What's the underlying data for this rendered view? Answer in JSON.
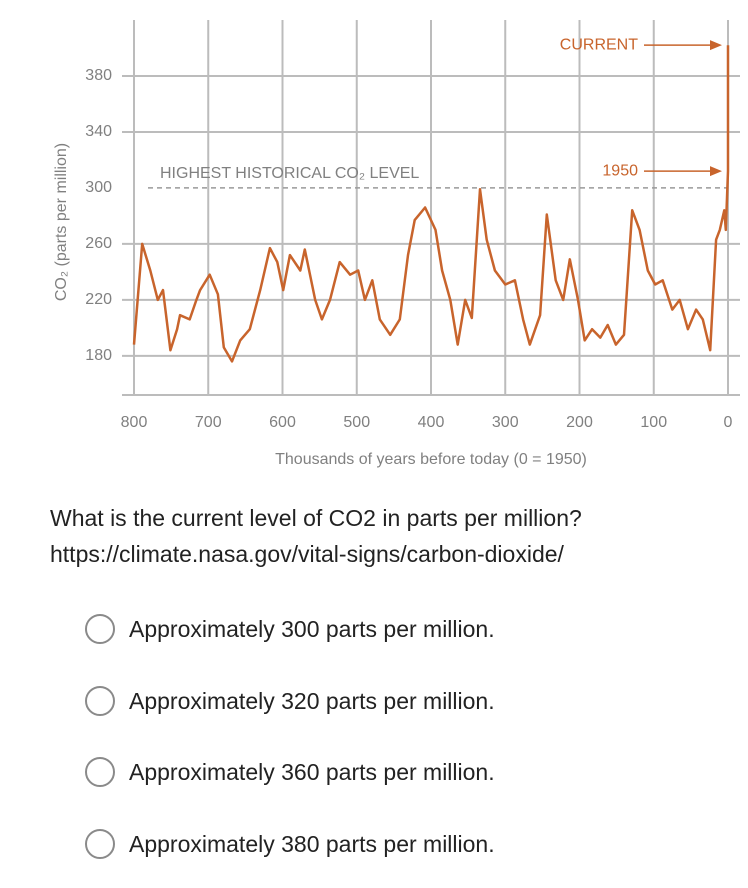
{
  "chart_data": {
    "type": "line",
    "y_label": "CO₂ (parts per million)",
    "x_label": "Thousands of years before today (0 = 1950)",
    "x": [
      800,
      789,
      778,
      768,
      761,
      751,
      742,
      738,
      725,
      716,
      711,
      698,
      687,
      679,
      668,
      657,
      644,
      630,
      617,
      607,
      599,
      590,
      576,
      570,
      556,
      547,
      536,
      523,
      509,
      498,
      489,
      479,
      469,
      455,
      442,
      431,
      422,
      408,
      394,
      385,
      374,
      364,
      354,
      345,
      334,
      325,
      314,
      300,
      287,
      276,
      267,
      253,
      244,
      232,
      222,
      213,
      202,
      193,
      183,
      172,
      162,
      151,
      140,
      129,
      119,
      108,
      98,
      88,
      75,
      65,
      54,
      43,
      34,
      24,
      16,
      11,
      5,
      3,
      0,
      0
    ],
    "values": [
      188,
      260,
      241,
      220,
      227,
      184,
      199,
      209,
      206,
      220,
      227,
      238,
      224,
      186,
      176,
      191,
      199,
      227,
      257,
      247,
      227,
      252,
      241,
      256,
      220,
      206,
      220,
      247,
      238,
      241,
      220,
      234,
      206,
      195,
      206,
      252,
      277,
      286,
      270,
      241,
      220,
      188,
      220,
      207,
      299,
      263,
      241,
      231,
      234,
      206,
      188,
      209,
      281,
      234,
      220,
      249,
      220,
      191,
      199,
      193,
      202,
      188,
      195,
      284,
      270,
      241,
      231,
      234,
      213,
      220,
      199,
      213,
      206,
      184,
      263,
      270,
      284,
      270,
      312,
      402
    ],
    "color": "#c8642c",
    "xlim": [
      800,
      0
    ],
    "xticks": [
      800,
      700,
      600,
      500,
      400,
      300,
      200,
      100,
      0
    ],
    "ylim": [
      152,
      420
    ],
    "yticks": [
      180,
      220,
      260,
      300,
      340,
      380
    ],
    "grid": true,
    "reference_line": {
      "value": 300,
      "label": "HIGHEST HISTORICAL CO₂ LEVEL"
    },
    "annotations": [
      {
        "text": "CURRENT",
        "x": 0,
        "y": 402
      },
      {
        "text": "1950",
        "x": 0,
        "y": 312
      }
    ]
  },
  "question": "What is the current level of CO2 in parts per million?",
  "link": "https://climate.nasa.gov/vital-signs/carbon-dioxide/",
  "options": [
    "Approximately 300 parts per million.",
    "Approximately 320 parts per million.",
    "Approximately 360 parts per million.",
    "Approximately 380 parts per million."
  ]
}
